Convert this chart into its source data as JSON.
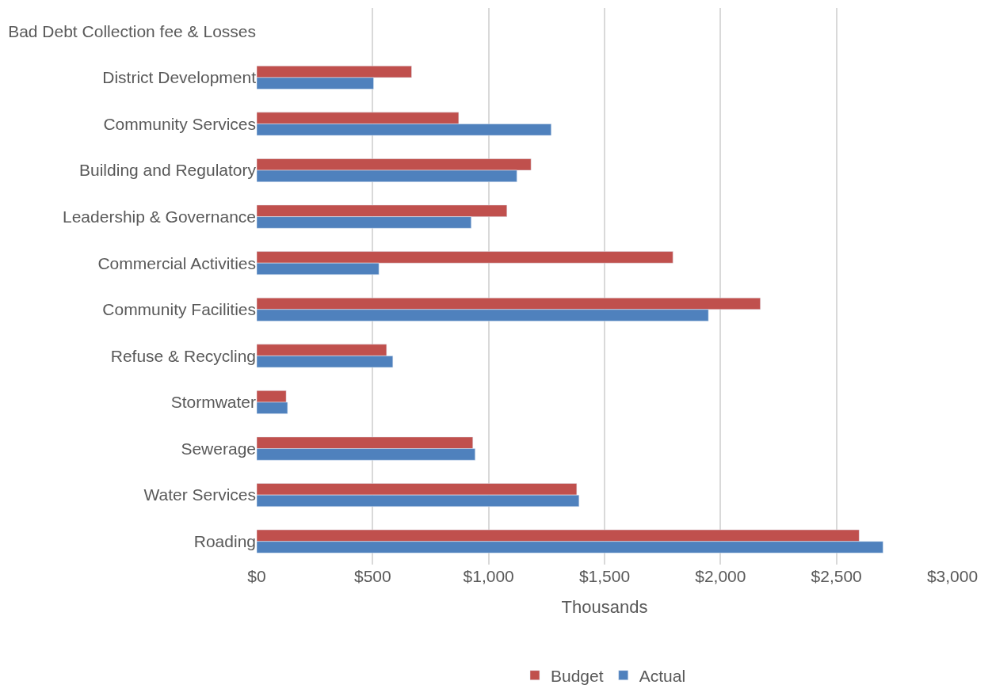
{
  "chart_data": {
    "type": "bar",
    "orientation": "horizontal",
    "xlabel": "Thousands",
    "categories": [
      "Bad Debt Collection fee & Losses",
      "District Development",
      "Community Services",
      "Building and Regulatory",
      "Leadership & Governance",
      "Commercial Activities",
      "Community Facilities",
      "Refuse & Recycling",
      "Stormwater",
      "Sewerage",
      "Water Services",
      "Roading"
    ],
    "series": [
      {
        "name": "Budget",
        "color": "#c0504d",
        "values": [
          null,
          668,
          871,
          1183,
          1079,
          1795,
          2172,
          560,
          127,
          932,
          1380,
          2598
        ]
      },
      {
        "name": "Actual",
        "color": "#4f81bd",
        "values": [
          null,
          504,
          1270,
          1122,
          925,
          527,
          1948,
          587,
          133,
          942,
          1390,
          2701
        ]
      }
    ],
    "xlim": [
      0,
      3000
    ],
    "xticks": [
      {
        "value": 0,
        "label": "$0"
      },
      {
        "value": 500,
        "label": "$500"
      },
      {
        "value": 1000,
        "label": "$1,000"
      },
      {
        "value": 1500,
        "label": "$1,500"
      },
      {
        "value": 2000,
        "label": "$2,000"
      },
      {
        "value": 2500,
        "label": "$2,500"
      },
      {
        "value": 3000,
        "label": "$3,000"
      }
    ],
    "grid": "x",
    "legend": "bottom"
  }
}
